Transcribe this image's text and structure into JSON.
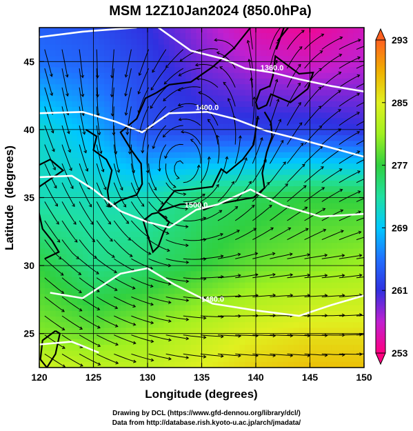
{
  "chart_data": {
    "type": "heatmap",
    "title": "MSM 12Z10Jan2024 (850.0hPa)",
    "xlabel": "Longitude (degrees)",
    "ylabel": "Latitude  (degrees)",
    "xlim": [
      120,
      150
    ],
    "ylim": [
      22.5,
      47.5
    ],
    "x_ticks": [
      "120",
      "125",
      "130",
      "135",
      "140",
      "145",
      "150"
    ],
    "y_ticks": [
      "25",
      "30",
      "35",
      "40",
      "45"
    ],
    "grid": true,
    "colorbar": {
      "min": 253,
      "max": 293,
      "ticks": [
        "293",
        "285",
        "277",
        "269",
        "261",
        "253"
      ],
      "colors": [
        "#ff0080",
        "#c020d0",
        "#3030e0",
        "#2070ff",
        "#00c8ff",
        "#20e0a0",
        "#30d040",
        "#a0f020",
        "#e0f020",
        "#f0b000",
        "#ff6020"
      ]
    },
    "temperature_field_k": {
      "lon": [
        120,
        125,
        130,
        135,
        140,
        145,
        150
      ],
      "lat": [
        47.5,
        45,
        40,
        35,
        30,
        25,
        22.5
      ],
      "values": [
        [
          264,
          263,
          261,
          258,
          255,
          254,
          256
        ],
        [
          265,
          264,
          262,
          259,
          257,
          256,
          257
        ],
        [
          271,
          268,
          263,
          262,
          262,
          262,
          261
        ],
        [
          272,
          272,
          272,
          275,
          276,
          277,
          277
        ],
        [
          277,
          274,
          275,
          277,
          279,
          280,
          281
        ],
        [
          280,
          279,
          281,
          283,
          285,
          286,
          286
        ],
        [
          284,
          283,
          283,
          285,
          287,
          288,
          288
        ]
      ]
    },
    "contour_labels": [
      "1360.0",
      "1400.0",
      "1500.0",
      "1480.0"
    ]
  },
  "credits": {
    "line1": "Drawing by DCL (https://www.gfd-dennou.org/library/dcl/)",
    "line2": "Data from http://database.rish.kyoto-u.ac.jp/arch/jmadata/"
  }
}
